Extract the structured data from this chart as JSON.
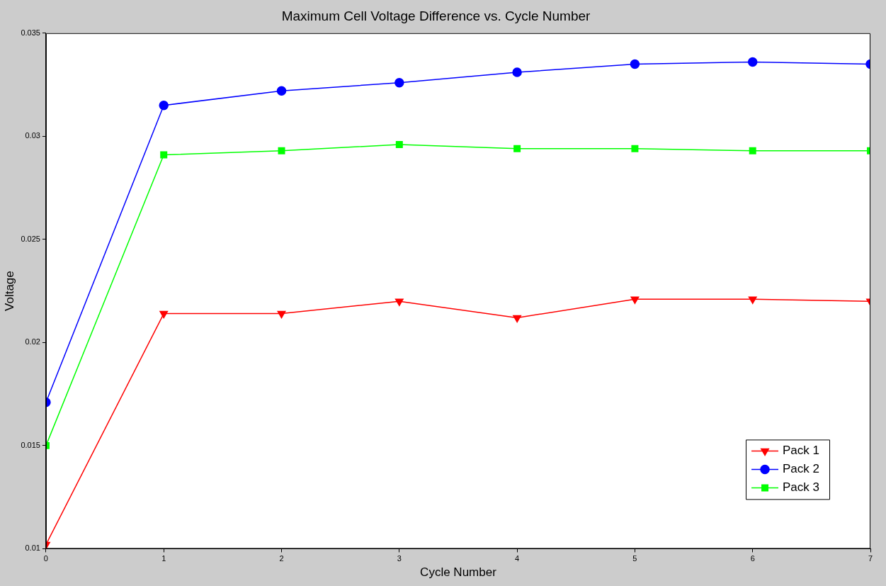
{
  "chart_data": {
    "type": "line",
    "title": "Maximum Cell Voltage Difference vs. Cycle Number",
    "xlabel": "Cycle Number",
    "ylabel": "Voltage",
    "x": [
      0,
      1,
      2,
      3,
      4,
      5,
      6,
      7
    ],
    "series": [
      {
        "name": "Pack 1",
        "color": "#ff0000",
        "marker": "triangle",
        "values": [
          0.0102,
          0.0214,
          0.0214,
          0.022,
          0.0212,
          0.0221,
          0.0221,
          0.022
        ]
      },
      {
        "name": "Pack 2",
        "color": "#0000ff",
        "marker": "circle",
        "values": [
          0.0171,
          0.0315,
          0.0322,
          0.0326,
          0.0331,
          0.0335,
          0.0336,
          0.0335
        ]
      },
      {
        "name": "Pack 3",
        "color": "#00ff00",
        "marker": "square",
        "values": [
          0.015,
          0.0291,
          0.0293,
          0.0296,
          0.0294,
          0.0294,
          0.0293,
          0.0293
        ]
      }
    ],
    "xlim": [
      0,
      7
    ],
    "xticks": [
      0,
      1,
      2,
      3,
      4,
      5,
      6,
      7
    ],
    "ylim": [
      0.01,
      0.035
    ],
    "yticks": [
      0.01,
      0.015,
      0.02,
      0.025,
      0.03,
      0.035
    ],
    "grid": false,
    "legend": "bottom right"
  }
}
